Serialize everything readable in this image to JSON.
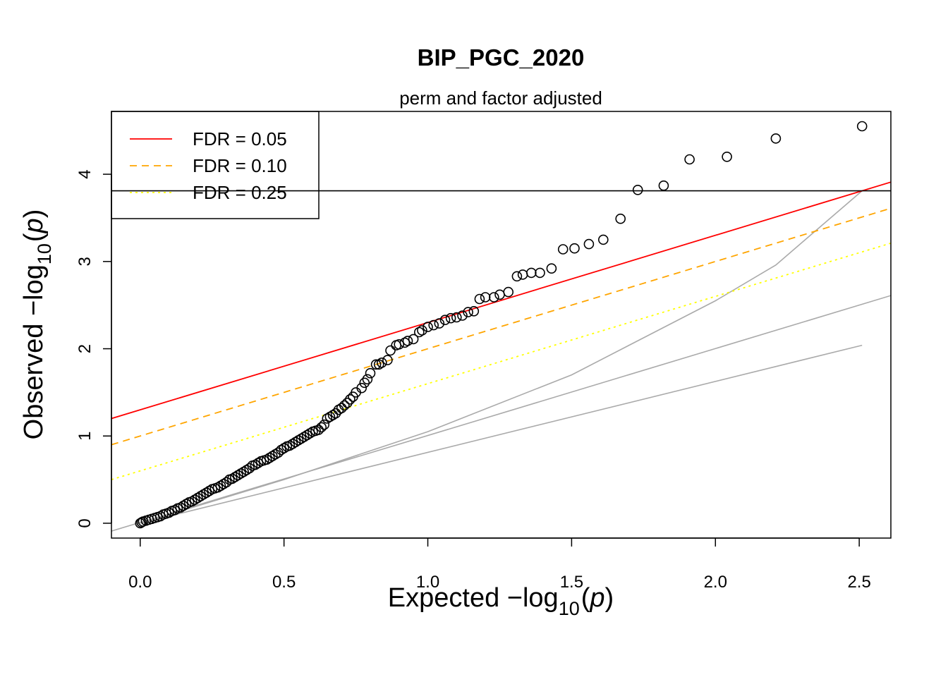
{
  "chart_data": {
    "type": "scatter",
    "title": "BIP_PGC_2020",
    "subtitle": "perm and factor adjusted",
    "xlabel": {
      "prefix": "Expected  −log",
      "sub": "10",
      "open": "(",
      "var": "p",
      "close": ")"
    },
    "ylabel": {
      "prefix": "Observed  −log",
      "sub": "10",
      "open": "(",
      "var": "p",
      "close": ")"
    },
    "xlim": [
      -0.1,
      2.61
    ],
    "ylim": [
      -0.17,
      4.72
    ],
    "xticks": [
      0.0,
      0.5,
      1.0,
      1.5,
      2.0,
      2.5
    ],
    "xtick_labels": [
      "0.0",
      "0.5",
      "1.0",
      "1.5",
      "2.0",
      "2.5"
    ],
    "yticks": [
      0,
      1,
      2,
      3,
      4
    ],
    "ytick_labels": [
      "0",
      "1",
      "2",
      "3",
      "4"
    ],
    "grid": false,
    "legend": {
      "position": "top-left",
      "entries": [
        {
          "label": "FDR = 0.05",
          "color": "#ff0000",
          "dash": "solid"
        },
        {
          "label": "FDR = 0.10",
          "color": "#ffa500",
          "dash": "dashed"
        },
        {
          "label": "FDR = 0.25",
          "color": "#ffff00",
          "dash": "dotted"
        }
      ]
    },
    "lines": [
      {
        "name": "FDR = 0.05",
        "color": "#ff0000",
        "dash": "solid",
        "intercept": 1.3,
        "slope": 1.0
      },
      {
        "name": "FDR = 0.10",
        "color": "#ffa500",
        "dash": "dashed",
        "intercept": 1.0,
        "slope": 1.0
      },
      {
        "name": "FDR = 0.25",
        "color": "#ffff00",
        "dash": "dotted",
        "intercept": 0.6,
        "slope": 1.0
      }
    ],
    "hline": {
      "y": 3.81,
      "color": "#000000"
    },
    "reference_lines": [
      {
        "color": "#aaaaaa",
        "x": [
          -0.1,
          2.61
        ],
        "y": [
          -0.09,
          2.61
        ]
      },
      {
        "color": "#aaaaaa",
        "x": [
          0.0,
          2.51
        ],
        "y": [
          0.0,
          2.04
        ]
      },
      {
        "color": "#aaaaaa",
        "x": [
          0.0,
          0.5,
          1.0,
          1.5,
          2.0,
          2.21,
          2.51
        ],
        "y": [
          0.0,
          0.5,
          1.05,
          1.7,
          2.55,
          2.96,
          3.81
        ]
      }
    ],
    "points": {
      "x": [
        2.51,
        2.21,
        2.04,
        1.91,
        1.82,
        1.73,
        1.67,
        1.61,
        1.56,
        1.51,
        1.47,
        1.43,
        1.39,
        1.36,
        1.33,
        1.31,
        1.28,
        1.25,
        1.23,
        1.2,
        1.18,
        1.16,
        1.14,
        1.12,
        1.1,
        1.08,
        1.06,
        1.04,
        1.02,
        1.0,
        0.98,
        0.97,
        0.95,
        0.93,
        0.92,
        0.9,
        0.89,
        0.87,
        0.86,
        0.84,
        0.83,
        0.82,
        0.8,
        0.79,
        0.78,
        0.77,
        0.75,
        0.74,
        0.73,
        0.72,
        0.71,
        0.7,
        0.69,
        0.68,
        0.67,
        0.66,
        0.65,
        0.64,
        0.63,
        0.62,
        0.61,
        0.6,
        0.59,
        0.58,
        0.57,
        0.56,
        0.55,
        0.54,
        0.53,
        0.52,
        0.51,
        0.5,
        0.49,
        0.48,
        0.47,
        0.46,
        0.45,
        0.44,
        0.43,
        0.42,
        0.41,
        0.4,
        0.39,
        0.38,
        0.37,
        0.36,
        0.35,
        0.34,
        0.33,
        0.32,
        0.31,
        0.3,
        0.29,
        0.28,
        0.27,
        0.26,
        0.25,
        0.24,
        0.23,
        0.22,
        0.21,
        0.2,
        0.19,
        0.18,
        0.17,
        0.16,
        0.15,
        0.14,
        0.13,
        0.12,
        0.11,
        0.1,
        0.09,
        0.08,
        0.07,
        0.06,
        0.05,
        0.04,
        0.03,
        0.02,
        0.01,
        0.005,
        0.0
      ],
      "y": [
        4.55,
        4.41,
        4.2,
        4.17,
        3.87,
        3.82,
        3.49,
        3.25,
        3.2,
        3.15,
        3.14,
        2.92,
        2.87,
        2.87,
        2.85,
        2.83,
        2.65,
        2.62,
        2.59,
        2.59,
        2.57,
        2.43,
        2.42,
        2.38,
        2.36,
        2.35,
        2.33,
        2.29,
        2.27,
        2.25,
        2.21,
        2.19,
        2.11,
        2.09,
        2.07,
        2.05,
        2.04,
        1.98,
        1.87,
        1.84,
        1.82,
        1.82,
        1.72,
        1.65,
        1.61,
        1.55,
        1.5,
        1.45,
        1.42,
        1.38,
        1.35,
        1.32,
        1.3,
        1.26,
        1.24,
        1.22,
        1.2,
        1.13,
        1.1,
        1.07,
        1.06,
        1.05,
        1.03,
        1.01,
        0.99,
        0.97,
        0.95,
        0.93,
        0.91,
        0.89,
        0.88,
        0.86,
        0.84,
        0.81,
        0.79,
        0.77,
        0.75,
        0.73,
        0.72,
        0.71,
        0.69,
        0.67,
        0.66,
        0.63,
        0.61,
        0.59,
        0.57,
        0.55,
        0.53,
        0.51,
        0.5,
        0.47,
        0.45,
        0.43,
        0.41,
        0.4,
        0.39,
        0.37,
        0.35,
        0.33,
        0.31,
        0.29,
        0.27,
        0.25,
        0.24,
        0.22,
        0.2,
        0.18,
        0.17,
        0.15,
        0.14,
        0.12,
        0.11,
        0.1,
        0.08,
        0.07,
        0.06,
        0.05,
        0.04,
        0.03,
        0.02,
        0.01,
        0.0
      ],
      "marker": "open-circle",
      "color": "#000000"
    }
  }
}
